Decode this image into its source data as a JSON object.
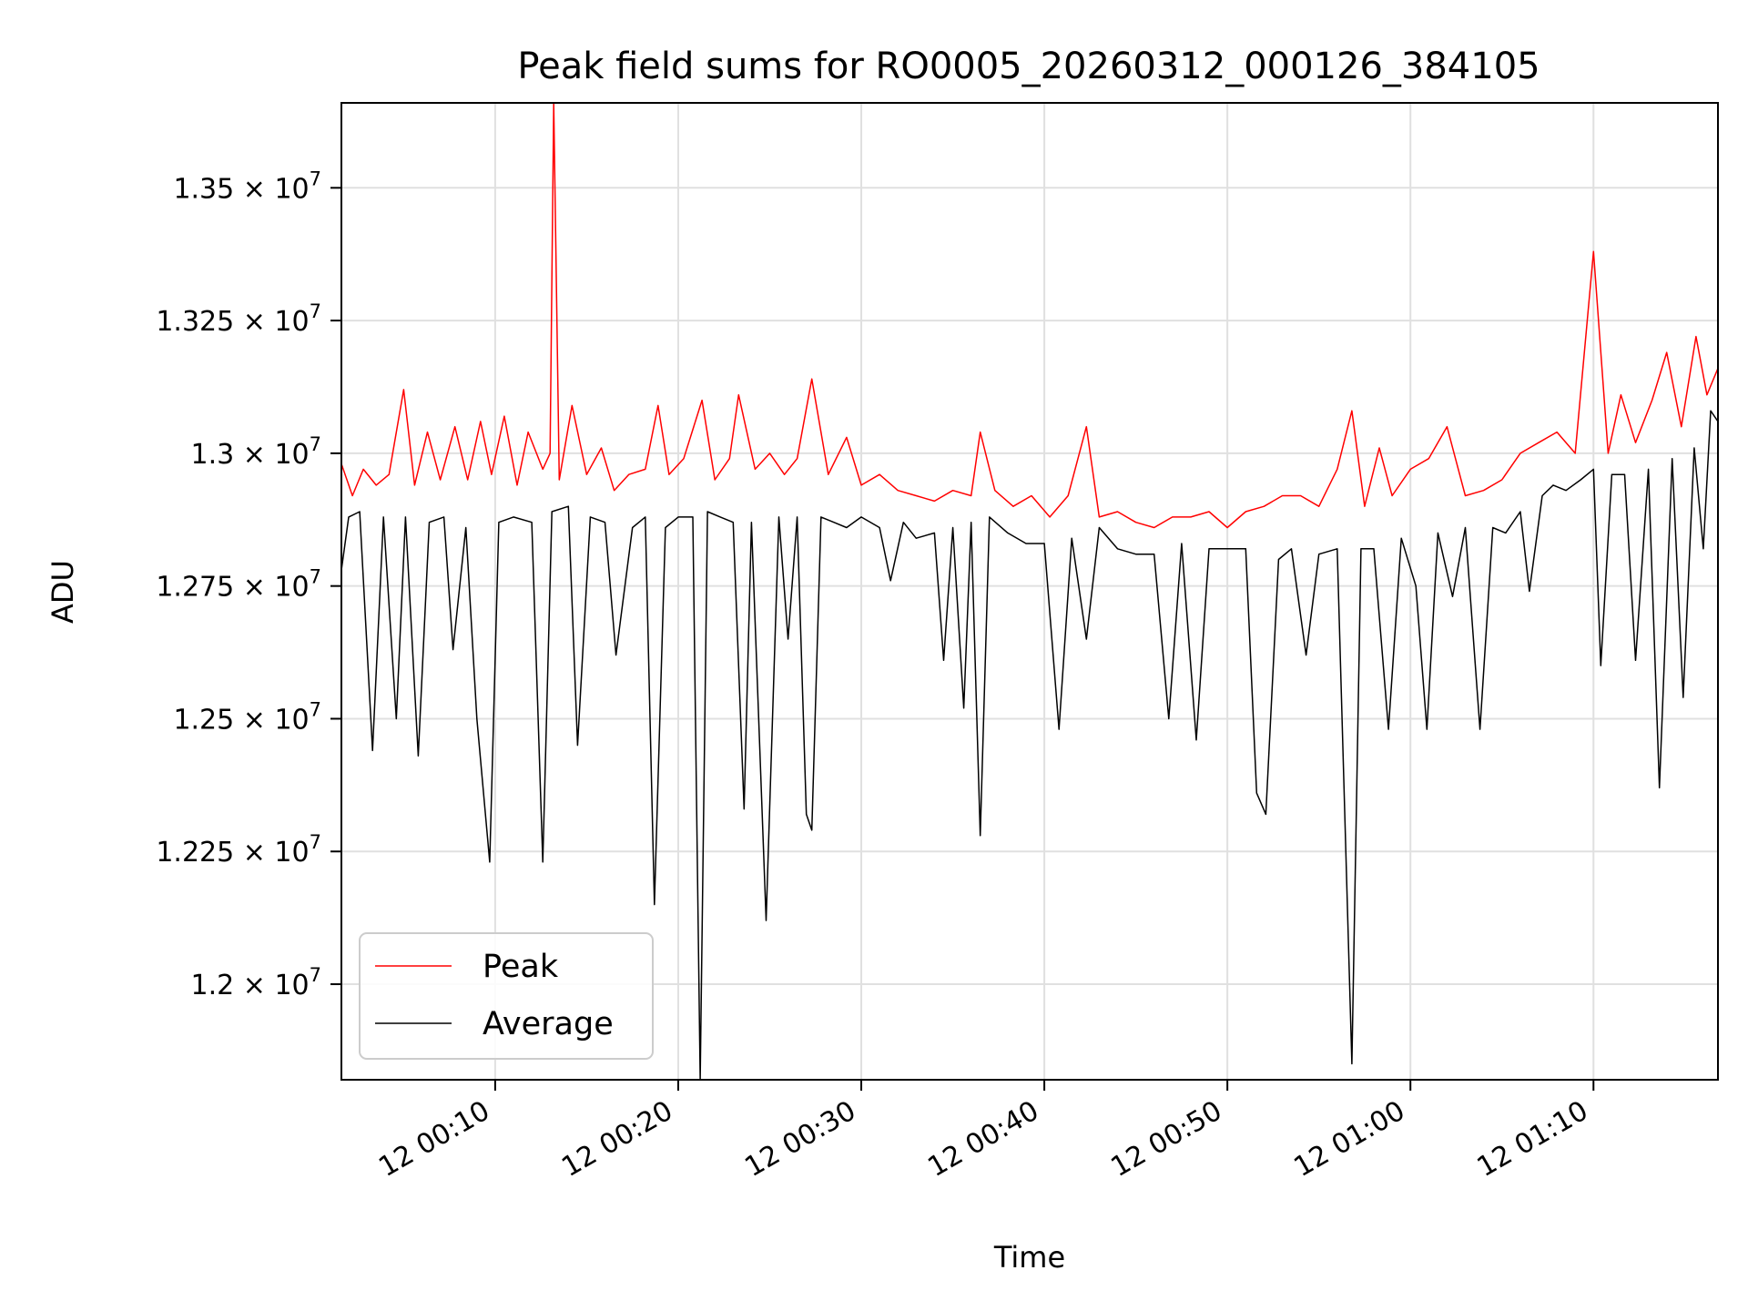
{
  "chart_data": {
    "type": "line",
    "title": "Peak field sums for RO0005_20260312_000126_384105",
    "xlabel": "Time",
    "ylabel": "ADU",
    "x_range_minutes": [
      1.6,
      76.8
    ],
    "ylim": [
      11820000,
      13660000
    ],
    "grid": true,
    "legend_position": "lower-left",
    "x_ticks": [
      {
        "value": 10,
        "label": "12 00:10"
      },
      {
        "value": 20,
        "label": "12 00:20"
      },
      {
        "value": 30,
        "label": "12 00:30"
      },
      {
        "value": 40,
        "label": "12 00:40"
      },
      {
        "value": 50,
        "label": "12 00:50"
      },
      {
        "value": 60,
        "label": "12 01:00"
      },
      {
        "value": 70,
        "label": "12 01:10"
      }
    ],
    "y_ticks": [
      {
        "value": 12000000,
        "mantissa": "1.2"
      },
      {
        "value": 12250000,
        "mantissa": "1.225"
      },
      {
        "value": 12500000,
        "mantissa": "1.25"
      },
      {
        "value": 12750000,
        "mantissa": "1.275"
      },
      {
        "value": 13000000,
        "mantissa": "1.3"
      },
      {
        "value": 13250000,
        "mantissa": "1.325"
      },
      {
        "value": 13500000,
        "mantissa": "1.35"
      }
    ],
    "y_tick_base": "10",
    "y_tick_exponent": "7",
    "y_tick_times": "×",
    "series": [
      {
        "name": "Peak",
        "color": "#ff0000",
        "points": [
          [
            1.6,
            12980000
          ],
          [
            2.2,
            12920000
          ],
          [
            2.8,
            12970000
          ],
          [
            3.5,
            12940000
          ],
          [
            4.2,
            12960000
          ],
          [
            5.0,
            13120000
          ],
          [
            5.6,
            12940000
          ],
          [
            6.3,
            13040000
          ],
          [
            7.0,
            12950000
          ],
          [
            7.8,
            13050000
          ],
          [
            8.5,
            12950000
          ],
          [
            9.2,
            13060000
          ],
          [
            9.8,
            12960000
          ],
          [
            10.5,
            13070000
          ],
          [
            11.2,
            12940000
          ],
          [
            11.8,
            13040000
          ],
          [
            12.6,
            12970000
          ],
          [
            13.0,
            13000000
          ],
          [
            13.2,
            13660000
          ],
          [
            13.5,
            12950000
          ],
          [
            14.2,
            13090000
          ],
          [
            15.0,
            12960000
          ],
          [
            15.8,
            13010000
          ],
          [
            16.5,
            12930000
          ],
          [
            17.3,
            12960000
          ],
          [
            18.2,
            12970000
          ],
          [
            18.9,
            13090000
          ],
          [
            19.5,
            12960000
          ],
          [
            20.3,
            12990000
          ],
          [
            21.3,
            13100000
          ],
          [
            22.0,
            12950000
          ],
          [
            22.8,
            12990000
          ],
          [
            23.3,
            13110000
          ],
          [
            24.2,
            12970000
          ],
          [
            25.0,
            13000000
          ],
          [
            25.8,
            12960000
          ],
          [
            26.5,
            12990000
          ],
          [
            27.3,
            13140000
          ],
          [
            28.2,
            12960000
          ],
          [
            29.2,
            13030000
          ],
          [
            30.0,
            12940000
          ],
          [
            31.0,
            12960000
          ],
          [
            32.0,
            12930000
          ],
          [
            33.0,
            12920000
          ],
          [
            34.0,
            12910000
          ],
          [
            35.0,
            12930000
          ],
          [
            36.0,
            12920000
          ],
          [
            36.5,
            13040000
          ],
          [
            37.3,
            12930000
          ],
          [
            38.3,
            12900000
          ],
          [
            39.3,
            12920000
          ],
          [
            40.3,
            12880000
          ],
          [
            41.3,
            12920000
          ],
          [
            42.3,
            13050000
          ],
          [
            43.0,
            12880000
          ],
          [
            44.0,
            12890000
          ],
          [
            45.0,
            12870000
          ],
          [
            46.0,
            12860000
          ],
          [
            47.0,
            12880000
          ],
          [
            48.0,
            12880000
          ],
          [
            49.0,
            12890000
          ],
          [
            50.0,
            12860000
          ],
          [
            51.0,
            12890000
          ],
          [
            52.0,
            12900000
          ],
          [
            53.0,
            12920000
          ],
          [
            54.0,
            12920000
          ],
          [
            55.0,
            12900000
          ],
          [
            56.0,
            12970000
          ],
          [
            56.8,
            13080000
          ],
          [
            57.5,
            12900000
          ],
          [
            58.3,
            13010000
          ],
          [
            59.0,
            12920000
          ],
          [
            60.0,
            12970000
          ],
          [
            61.0,
            12990000
          ],
          [
            62.0,
            13050000
          ],
          [
            63.0,
            12920000
          ],
          [
            64.0,
            12930000
          ],
          [
            65.0,
            12950000
          ],
          [
            66.0,
            13000000
          ],
          [
            67.0,
            13020000
          ],
          [
            68.0,
            13040000
          ],
          [
            69.0,
            13000000
          ],
          [
            70.0,
            13380000
          ],
          [
            70.8,
            13000000
          ],
          [
            71.5,
            13110000
          ],
          [
            72.3,
            13020000
          ],
          [
            73.2,
            13100000
          ],
          [
            74.0,
            13190000
          ],
          [
            74.8,
            13050000
          ],
          [
            75.6,
            13220000
          ],
          [
            76.2,
            13110000
          ],
          [
            76.8,
            13160000
          ]
        ]
      },
      {
        "name": "Average",
        "color": "#000000",
        "points": [
          [
            1.6,
            12780000
          ],
          [
            2.0,
            12880000
          ],
          [
            2.6,
            12890000
          ],
          [
            3.3,
            12440000
          ],
          [
            3.9,
            12880000
          ],
          [
            4.6,
            12500000
          ],
          [
            5.1,
            12880000
          ],
          [
            5.8,
            12430000
          ],
          [
            6.4,
            12870000
          ],
          [
            7.2,
            12880000
          ],
          [
            7.7,
            12630000
          ],
          [
            8.4,
            12860000
          ],
          [
            9.0,
            12500000
          ],
          [
            9.7,
            12230000
          ],
          [
            10.2,
            12870000
          ],
          [
            11.0,
            12880000
          ],
          [
            12.0,
            12870000
          ],
          [
            12.6,
            12230000
          ],
          [
            13.1,
            12890000
          ],
          [
            14.0,
            12900000
          ],
          [
            14.5,
            12450000
          ],
          [
            15.2,
            12880000
          ],
          [
            16.0,
            12870000
          ],
          [
            16.6,
            12620000
          ],
          [
            17.5,
            12860000
          ],
          [
            18.2,
            12880000
          ],
          [
            18.7,
            12150000
          ],
          [
            19.3,
            12860000
          ],
          [
            20.0,
            12880000
          ],
          [
            20.8,
            12880000
          ],
          [
            21.2,
            11820000
          ],
          [
            21.6,
            12890000
          ],
          [
            22.3,
            12880000
          ],
          [
            23.0,
            12870000
          ],
          [
            23.6,
            12330000
          ],
          [
            24.0,
            12870000
          ],
          [
            24.8,
            12120000
          ],
          [
            25.5,
            12880000
          ],
          [
            26.0,
            12650000
          ],
          [
            26.5,
            12880000
          ],
          [
            27.0,
            12320000
          ],
          [
            27.3,
            12290000
          ],
          [
            27.8,
            12880000
          ],
          [
            28.5,
            12870000
          ],
          [
            29.2,
            12860000
          ],
          [
            30.0,
            12880000
          ],
          [
            31.0,
            12860000
          ],
          [
            31.6,
            12760000
          ],
          [
            32.3,
            12870000
          ],
          [
            33.0,
            12840000
          ],
          [
            34.0,
            12850000
          ],
          [
            34.5,
            12610000
          ],
          [
            35.0,
            12860000
          ],
          [
            35.6,
            12520000
          ],
          [
            36.0,
            12870000
          ],
          [
            36.5,
            12280000
          ],
          [
            37.0,
            12880000
          ],
          [
            38.0,
            12850000
          ],
          [
            39.0,
            12830000
          ],
          [
            40.0,
            12830000
          ],
          [
            40.8,
            12480000
          ],
          [
            41.5,
            12840000
          ],
          [
            42.3,
            12650000
          ],
          [
            43.0,
            12860000
          ],
          [
            44.0,
            12820000
          ],
          [
            45.0,
            12810000
          ],
          [
            46.0,
            12810000
          ],
          [
            46.8,
            12500000
          ],
          [
            47.5,
            12830000
          ],
          [
            48.3,
            12460000
          ],
          [
            49.0,
            12820000
          ],
          [
            50.0,
            12820000
          ],
          [
            51.0,
            12820000
          ],
          [
            51.6,
            12360000
          ],
          [
            52.1,
            12320000
          ],
          [
            52.8,
            12800000
          ],
          [
            53.5,
            12820000
          ],
          [
            54.3,
            12620000
          ],
          [
            55.0,
            12810000
          ],
          [
            56.0,
            12820000
          ],
          [
            56.8,
            11850000
          ],
          [
            57.3,
            12820000
          ],
          [
            58.0,
            12820000
          ],
          [
            58.8,
            12480000
          ],
          [
            59.5,
            12840000
          ],
          [
            60.3,
            12750000
          ],
          [
            60.9,
            12480000
          ],
          [
            61.5,
            12850000
          ],
          [
            62.3,
            12730000
          ],
          [
            63.0,
            12860000
          ],
          [
            63.8,
            12480000
          ],
          [
            64.5,
            12860000
          ],
          [
            65.2,
            12850000
          ],
          [
            66.0,
            12890000
          ],
          [
            66.5,
            12740000
          ],
          [
            67.2,
            12920000
          ],
          [
            67.8,
            12940000
          ],
          [
            68.5,
            12930000
          ],
          [
            69.3,
            12950000
          ],
          [
            70.0,
            12970000
          ],
          [
            70.4,
            12600000
          ],
          [
            71.0,
            12960000
          ],
          [
            71.7,
            12960000
          ],
          [
            72.3,
            12610000
          ],
          [
            73.0,
            12970000
          ],
          [
            73.6,
            12370000
          ],
          [
            74.3,
            12990000
          ],
          [
            74.9,
            12540000
          ],
          [
            75.5,
            13010000
          ],
          [
            76.0,
            12820000
          ],
          [
            76.4,
            13080000
          ],
          [
            76.8,
            13060000
          ]
        ]
      }
    ]
  }
}
